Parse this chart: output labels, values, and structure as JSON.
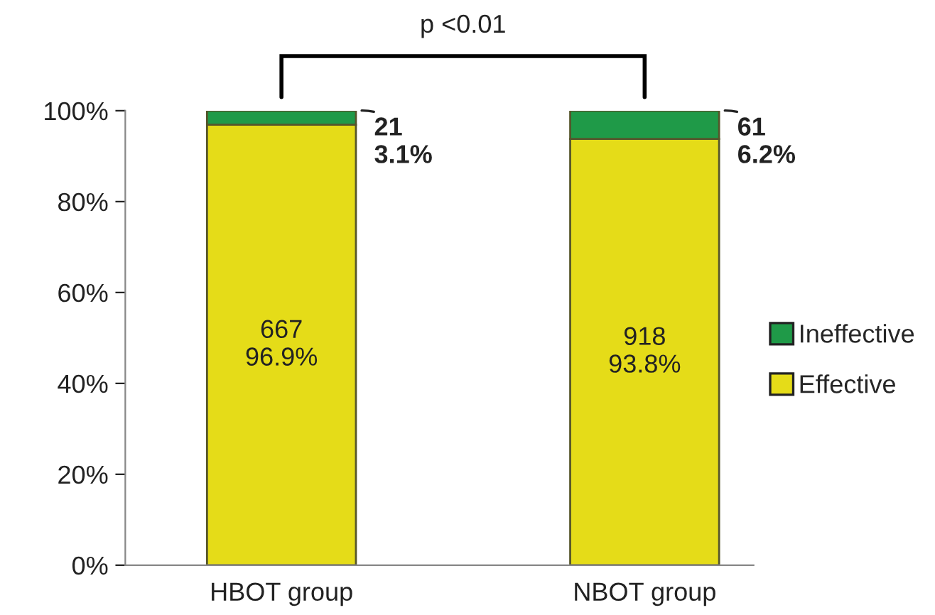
{
  "chart_data": {
    "type": "bar",
    "stacked": true,
    "categories": [
      "HBOT group",
      "NBOT group"
    ],
    "series": [
      {
        "name": "Effective",
        "color": "#e5dc18",
        "values": [
          96.9,
          93.8
        ],
        "value_labels": [
          "667\n96.9%",
          "918\n93.8%"
        ]
      },
      {
        "name": "Ineffective",
        "color": "#1f9a48",
        "values": [
          3.1,
          6.2
        ],
        "value_labels": [
          "21\n3.1%",
          "61\n6.2%"
        ]
      }
    ],
    "ylim": [
      0,
      100
    ],
    "yticks": [
      {
        "value": 0,
        "label": "0%"
      },
      {
        "value": 20,
        "label": "20%"
      },
      {
        "value": 40,
        "label": "40%"
      },
      {
        "value": 60,
        "label": "60%"
      },
      {
        "value": 80,
        "label": "80%"
      },
      {
        "value": 100,
        "label": "100%"
      }
    ],
    "annotations": [
      "p <0.01"
    ],
    "legend": "right",
    "grid": false
  }
}
